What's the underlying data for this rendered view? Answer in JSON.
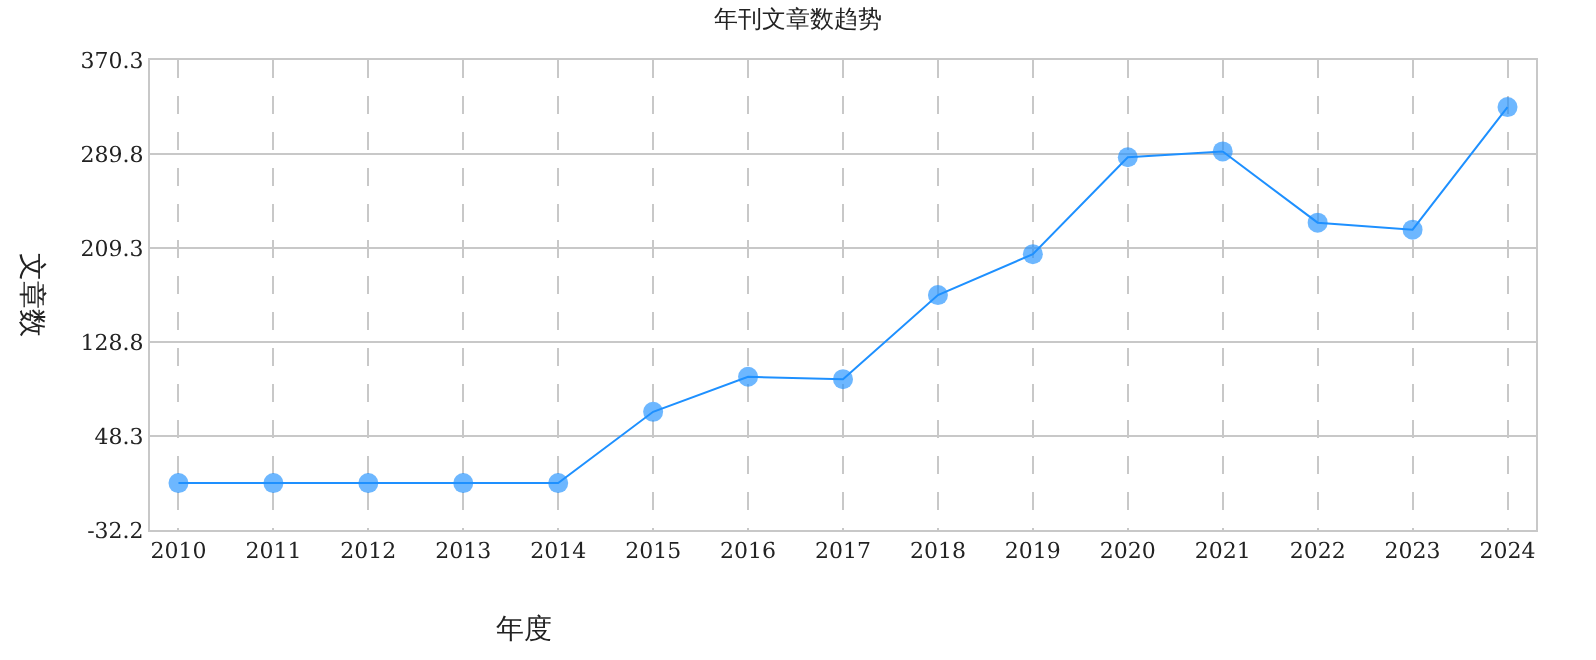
{
  "chart_data": {
    "type": "line",
    "title": "年刊文章数趋势",
    "xlabel": "年度",
    "ylabel": "文章数",
    "categories": [
      "2010",
      "2011",
      "2012",
      "2013",
      "2014",
      "2015",
      "2016",
      "2017",
      "2018",
      "2019",
      "2020",
      "2021",
      "2022",
      "2023",
      "2024"
    ],
    "series": [
      {
        "color": "#1e90ff",
        "values": [
          8,
          8,
          8,
          8,
          8,
          69,
          99,
          97,
          169,
          204,
          287,
          292,
          231,
          225,
          330
        ]
      }
    ],
    "ylim": [
      -32.2,
      370.3
    ],
    "yticks": [
      -32.2,
      48.3,
      128.8,
      209.3,
      289.8,
      370.3
    ],
    "grid": true,
    "marker": "circle",
    "line_style": "solid",
    "legend": false
  }
}
